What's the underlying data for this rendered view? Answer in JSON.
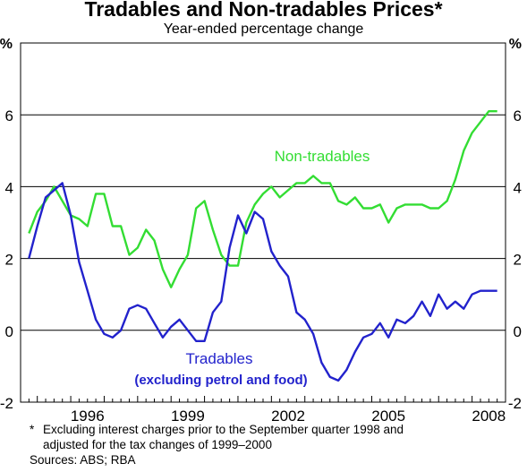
{
  "title": "Tradables and Non-tradables Prices*",
  "subtitle": "Year-ended percentage change",
  "footnote": {
    "marker": "*",
    "line1": "Excluding interest charges prior to the September quarter 1998 and",
    "line2": "adjusted for the tax changes of 1999–2000"
  },
  "sources": "Sources: ABS; RBA",
  "chart_data": {
    "type": "line",
    "title": "Tradables and Non-tradables Prices*",
    "subtitle": "Year-ended percentage change",
    "ylabel_left": "%",
    "ylabel_right": "%",
    "ylim": [
      -2,
      8
    ],
    "yticks": [
      -2,
      0,
      2,
      4,
      6
    ],
    "xlim": [
      1994.5,
      2009.0
    ],
    "xticks": [
      1996,
      1999,
      2002,
      2005,
      2008
    ],
    "grid": true,
    "series": [
      {
        "name": "Non-tradables",
        "color": "#33dd33",
        "x": [
          1994.75,
          1995.0,
          1995.25,
          1995.5,
          1995.75,
          1996.0,
          1996.25,
          1996.5,
          1996.75,
          1997.0,
          1997.25,
          1997.5,
          1997.75,
          1998.0,
          1998.25,
          1998.5,
          1998.75,
          1999.0,
          1999.25,
          1999.5,
          1999.75,
          2000.0,
          2000.25,
          2000.5,
          2000.75,
          2001.0,
          2001.25,
          2001.5,
          2001.75,
          2002.0,
          2002.25,
          2002.5,
          2002.75,
          2003.0,
          2003.25,
          2003.5,
          2003.75,
          2004.0,
          2004.25,
          2004.5,
          2004.75,
          2005.0,
          2005.25,
          2005.5,
          2005.75,
          2006.0,
          2006.25,
          2006.5,
          2006.75,
          2007.0,
          2007.25,
          2007.5,
          2007.75,
          2008.0,
          2008.25,
          2008.5,
          2008.75
        ],
        "values": [
          2.7,
          3.3,
          3.6,
          4.0,
          3.6,
          3.2,
          3.1,
          2.9,
          3.8,
          3.8,
          2.9,
          2.9,
          2.1,
          2.3,
          2.8,
          2.5,
          1.7,
          1.2,
          1.7,
          2.1,
          3.4,
          3.6,
          2.8,
          2.1,
          1.8,
          1.8,
          3.0,
          3.5,
          3.8,
          4.0,
          3.7,
          3.9,
          4.1,
          4.1,
          4.3,
          4.1,
          4.1,
          3.6,
          3.5,
          3.7,
          3.4,
          3.4,
          3.5,
          3.0,
          3.4,
          3.5,
          3.5,
          3.5,
          3.4,
          3.4,
          3.6,
          4.2,
          5.0,
          5.5,
          5.8,
          6.1,
          6.1
        ]
      },
      {
        "name": "Tradables",
        "color": "#2222cc",
        "x": [
          1994.75,
          1995.0,
          1995.25,
          1995.5,
          1995.75,
          1996.0,
          1996.25,
          1996.5,
          1996.75,
          1997.0,
          1997.25,
          1997.5,
          1997.75,
          1998.0,
          1998.25,
          1998.5,
          1998.75,
          1999.0,
          1999.25,
          1999.5,
          1999.75,
          2000.0,
          2000.25,
          2000.5,
          2000.75,
          2001.0,
          2001.25,
          2001.5,
          2001.75,
          2002.0,
          2002.25,
          2002.5,
          2002.75,
          2003.0,
          2003.25,
          2003.5,
          2003.75,
          2004.0,
          2004.25,
          2004.5,
          2004.75,
          2005.0,
          2005.25,
          2005.5,
          2005.75,
          2006.0,
          2006.25,
          2006.5,
          2006.75,
          2007.0,
          2007.25,
          2007.5,
          2007.75,
          2008.0,
          2008.25,
          2008.5,
          2008.75
        ],
        "values": [
          2.0,
          2.9,
          3.7,
          3.9,
          4.1,
          3.2,
          1.9,
          1.1,
          0.3,
          -0.1,
          -0.2,
          0.0,
          0.6,
          0.7,
          0.6,
          0.2,
          -0.2,
          0.1,
          0.3,
          0.0,
          -0.3,
          -0.3,
          0.5,
          0.8,
          2.3,
          3.2,
          2.7,
          3.3,
          3.1,
          2.2,
          1.8,
          1.5,
          0.5,
          0.3,
          -0.1,
          -0.9,
          -1.3,
          -1.4,
          -1.1,
          -0.6,
          -0.2,
          -0.1,
          0.2,
          -0.2,
          0.3,
          0.2,
          0.4,
          0.8,
          0.4,
          1.0,
          0.6,
          0.8,
          0.6,
          1.0,
          1.1,
          1.1,
          1.1
        ]
      }
    ],
    "annotations": [
      {
        "text": "Non-tradables",
        "color": "#33dd33"
      },
      {
        "text": "Tradables",
        "color": "#2222cc"
      },
      {
        "text": "(excluding petrol and food)",
        "color": "#2222cc"
      }
    ]
  }
}
